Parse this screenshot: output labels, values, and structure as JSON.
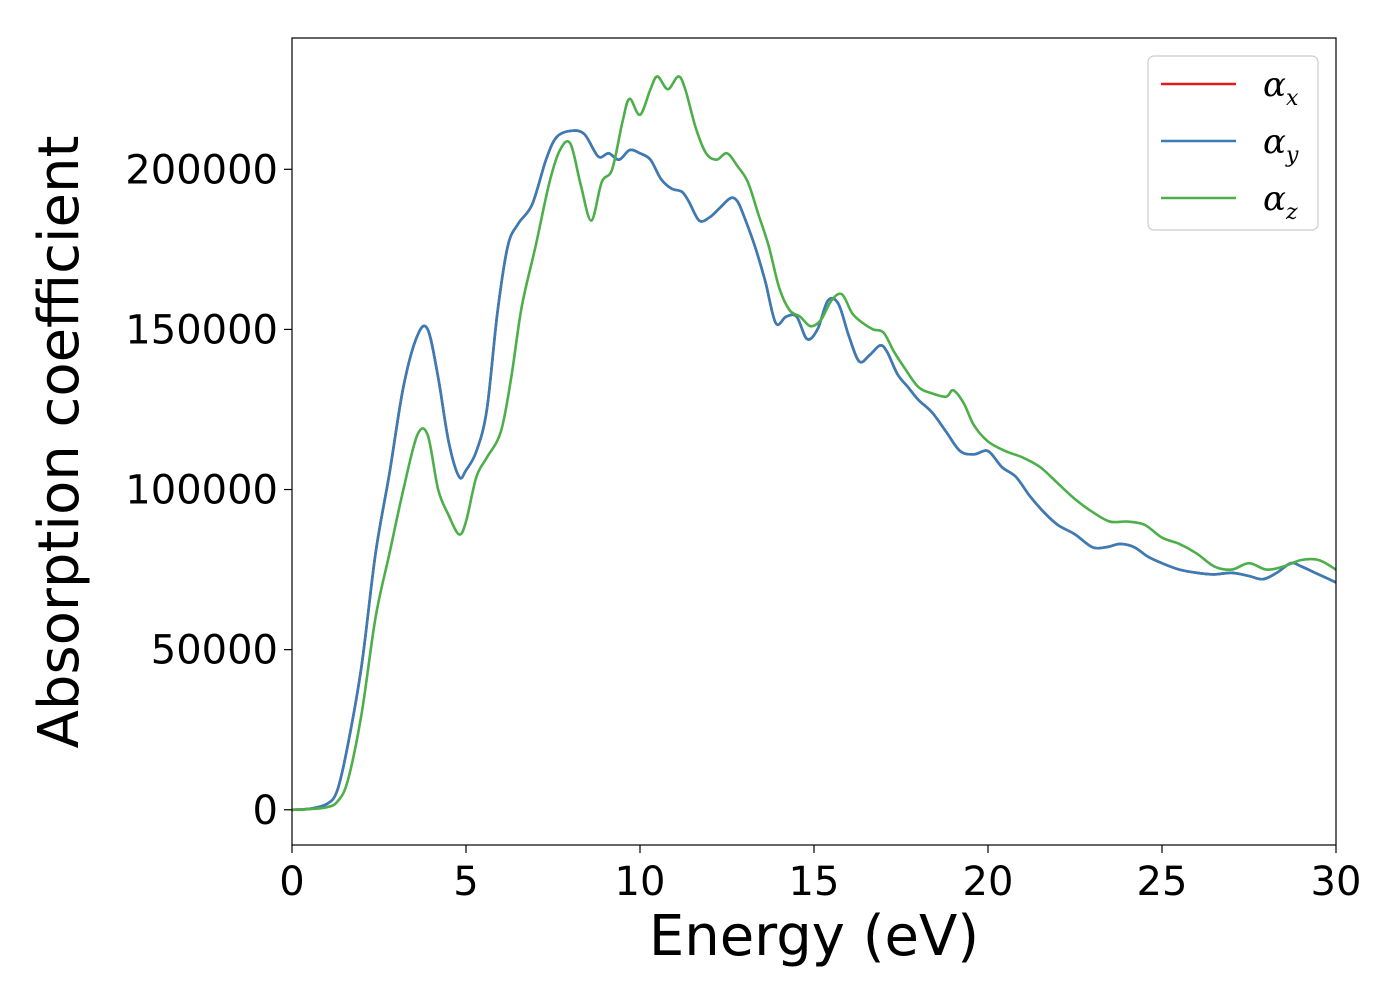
{
  "chart_data": {
    "type": "line",
    "xlabel": "Energy (eV)",
    "ylabel": "Absorption coefficient",
    "xlim": [
      0,
      30
    ],
    "ylim": [
      -11000,
      241000
    ],
    "xticks": [
      0,
      5,
      10,
      15,
      20,
      25,
      30
    ],
    "xtick_labels": [
      "0",
      "5",
      "10",
      "15",
      "20",
      "25",
      "30"
    ],
    "yticks": [
      0,
      50000,
      100000,
      150000,
      200000
    ],
    "ytick_labels": [
      "0",
      "50000",
      "100000",
      "150000",
      "200000"
    ],
    "grid": false,
    "legend_position": "top-right",
    "series": [
      {
        "name": "α_x",
        "symbol": "α",
        "subscript": "x",
        "color": "#e41a1c",
        "x": [
          0,
          0.5,
          1.0,
          1.3,
          1.6,
          2.0,
          2.4,
          2.8,
          3.2,
          3.6,
          3.9,
          4.2,
          4.5,
          4.8,
          5.0,
          5.3,
          5.6,
          5.9,
          6.2,
          6.5,
          6.9,
          7.3,
          7.6,
          8.0,
          8.4,
          8.8,
          9.1,
          9.4,
          9.7,
          10.0,
          10.3,
          10.6,
          10.9,
          11.2,
          11.4,
          11.7,
          12.0,
          12.3,
          12.6,
          12.8,
          13.0,
          13.3,
          13.6,
          13.9,
          14.2,
          14.5,
          14.8,
          15.1,
          15.4,
          15.7,
          16.0,
          16.3,
          16.6,
          16.9,
          17.1,
          17.4,
          17.7,
          18.0,
          18.4,
          18.8,
          19.2,
          19.6,
          20.0,
          20.4,
          20.8,
          21.2,
          21.6,
          22.0,
          22.5,
          23.0,
          23.4,
          23.8,
          24.2,
          24.6,
          25.0,
          25.5,
          26.0,
          26.5,
          27.0,
          27.5,
          27.9,
          28.3,
          28.7,
          29.0,
          29.4,
          29.8,
          30.0
        ],
        "values": [
          0,
          300,
          1800,
          6000,
          20000,
          45000,
          80000,
          105000,
          132000,
          148000,
          150000,
          135000,
          115000,
          104000,
          106000,
          112000,
          125000,
          155000,
          176000,
          183000,
          189000,
          203000,
          210000,
          212000,
          211000,
          204000,
          205000,
          203000,
          206000,
          205000,
          203000,
          197000,
          194000,
          193000,
          190000,
          184000,
          185000,
          188000,
          191000,
          190000,
          185000,
          176000,
          165000,
          152000,
          154000,
          154000,
          147000,
          150000,
          159000,
          158000,
          148000,
          140000,
          142000,
          145000,
          143000,
          136000,
          132000,
          128000,
          124000,
          118000,
          112000,
          111000,
          112000,
          107000,
          104000,
          98000,
          93000,
          89000,
          86000,
          82000,
          82000,
          83000,
          82000,
          79000,
          77000,
          75000,
          74000,
          73500,
          74000,
          73000,
          72000,
          74000,
          77000,
          76000,
          74000,
          72000,
          71000
        ]
      },
      {
        "name": "α_y",
        "symbol": "α",
        "subscript": "y",
        "color": "#377eb8",
        "x": [
          0,
          0.5,
          1.0,
          1.3,
          1.6,
          2.0,
          2.4,
          2.8,
          3.2,
          3.6,
          3.9,
          4.2,
          4.5,
          4.8,
          5.0,
          5.3,
          5.6,
          5.9,
          6.2,
          6.5,
          6.9,
          7.3,
          7.6,
          8.0,
          8.4,
          8.8,
          9.1,
          9.4,
          9.7,
          10.0,
          10.3,
          10.6,
          10.9,
          11.2,
          11.4,
          11.7,
          12.0,
          12.3,
          12.6,
          12.8,
          13.0,
          13.3,
          13.6,
          13.9,
          14.2,
          14.5,
          14.8,
          15.1,
          15.4,
          15.7,
          16.0,
          16.3,
          16.6,
          16.9,
          17.1,
          17.4,
          17.7,
          18.0,
          18.4,
          18.8,
          19.2,
          19.6,
          20.0,
          20.4,
          20.8,
          21.2,
          21.6,
          22.0,
          22.5,
          23.0,
          23.4,
          23.8,
          24.2,
          24.6,
          25.0,
          25.5,
          26.0,
          26.5,
          27.0,
          27.5,
          27.9,
          28.3,
          28.7,
          29.0,
          29.4,
          29.8,
          30.0
        ],
        "values": [
          0,
          300,
          1800,
          6000,
          20000,
          45000,
          80000,
          105000,
          132000,
          148000,
          150000,
          135000,
          115000,
          104000,
          106000,
          112000,
          125000,
          155000,
          176000,
          183000,
          189000,
          203000,
          210000,
          212000,
          211000,
          204000,
          205000,
          203000,
          206000,
          205000,
          203000,
          197000,
          194000,
          193000,
          190000,
          184000,
          185000,
          188000,
          191000,
          190000,
          185000,
          176000,
          165000,
          152000,
          154000,
          154000,
          147000,
          150000,
          159000,
          158000,
          148000,
          140000,
          142000,
          145000,
          143000,
          136000,
          132000,
          128000,
          124000,
          118000,
          112000,
          111000,
          112000,
          107000,
          104000,
          98000,
          93000,
          89000,
          86000,
          82000,
          82000,
          83000,
          82000,
          79000,
          77000,
          75000,
          74000,
          73500,
          74000,
          73000,
          72000,
          74000,
          77000,
          76000,
          74000,
          72000,
          71000
        ]
      },
      {
        "name": "α_z",
        "symbol": "α",
        "subscript": "z",
        "color": "#4daf4a",
        "x": [
          0,
          0.5,
          1.0,
          1.3,
          1.6,
          2.0,
          2.4,
          2.8,
          3.2,
          3.6,
          3.9,
          4.2,
          4.5,
          4.8,
          5.0,
          5.3,
          5.6,
          6.0,
          6.3,
          6.6,
          7.0,
          7.4,
          7.7,
          8.0,
          8.3,
          8.6,
          8.9,
          9.2,
          9.5,
          9.7,
          10.0,
          10.3,
          10.5,
          10.8,
          11.1,
          11.3,
          11.6,
          11.9,
          12.2,
          12.5,
          12.8,
          13.1,
          13.4,
          13.7,
          14.0,
          14.3,
          14.6,
          14.9,
          15.2,
          15.5,
          15.8,
          16.1,
          16.4,
          16.7,
          17.0,
          17.3,
          17.6,
          18.0,
          18.4,
          18.8,
          19.0,
          19.3,
          19.6,
          20.0,
          20.5,
          21.0,
          21.5,
          22.0,
          22.5,
          23.0,
          23.5,
          24.0,
          24.5,
          25.0,
          25.5,
          26.0,
          26.5,
          27.0,
          27.5,
          28.0,
          28.5,
          29.0,
          29.5,
          30.0
        ],
        "values": [
          0,
          200,
          800,
          2500,
          9000,
          30000,
          60000,
          80000,
          100000,
          117000,
          117000,
          100000,
          92000,
          86000,
          90000,
          104000,
          110000,
          118000,
          135000,
          157000,
          176000,
          196000,
          206000,
          208000,
          195000,
          184000,
          196000,
          200000,
          215000,
          222000,
          217000,
          225000,
          229000,
          225000,
          229000,
          225000,
          213000,
          205000,
          203000,
          205000,
          201000,
          196000,
          186000,
          176000,
          163000,
          156000,
          154000,
          151000,
          153000,
          159000,
          161000,
          155000,
          152000,
          150000,
          149000,
          143000,
          138000,
          132000,
          130000,
          129000,
          131000,
          127000,
          120000,
          115000,
          112000,
          110000,
          107000,
          102000,
          97000,
          93000,
          90000,
          90000,
          89000,
          85000,
          83000,
          80000,
          76000,
          75000,
          77000,
          75000,
          76000,
          78000,
          78000,
          75000
        ]
      }
    ]
  }
}
